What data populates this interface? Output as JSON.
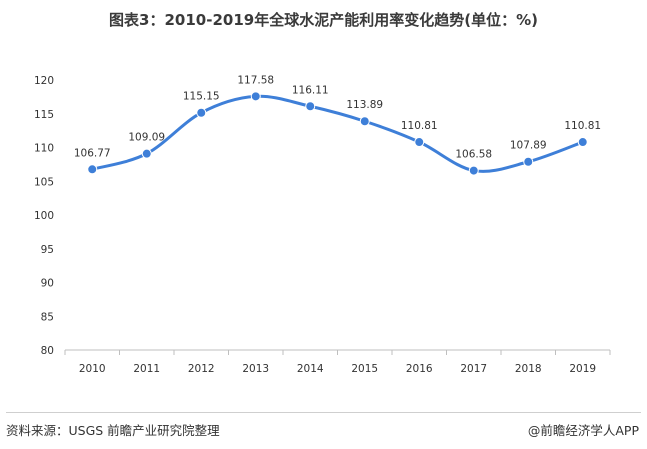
{
  "title": "图表3：2010-2019年全球水泥产能利用率变化趋势(单位：%)",
  "footer": {
    "source": "资料来源：USGS 前瞻产业研究院整理",
    "brand": "@前瞻经济学人APP"
  },
  "colors": {
    "line": "#3e7fd8",
    "axis": "#bfbfbf"
  },
  "chart_data": {
    "type": "line",
    "title": "图表3：2010-2019年全球水泥产能利用率变化趋势(单位：%)",
    "x": [
      "2010",
      "2011",
      "2012",
      "2013",
      "2014",
      "2015",
      "2016",
      "2017",
      "2018",
      "2019"
    ],
    "series": [
      {
        "values": [
          106.77,
          109.09,
          115.15,
          117.58,
          116.11,
          113.89,
          110.81,
          106.58,
          107.89,
          110.81
        ],
        "labels": [
          "106.77",
          "109.09",
          "115.15",
          "117.58",
          "116.11",
          "113.89",
          "110.81",
          "106.58",
          "107.89",
          "110.81"
        ]
      }
    ],
    "yticks": [
      "80",
      "85",
      "90",
      "95",
      "100",
      "105",
      "110",
      "115",
      "120"
    ],
    "ylim": [
      80,
      120
    ],
    "xlabel": "",
    "ylabel": "",
    "grid": false,
    "smooth": true
  }
}
